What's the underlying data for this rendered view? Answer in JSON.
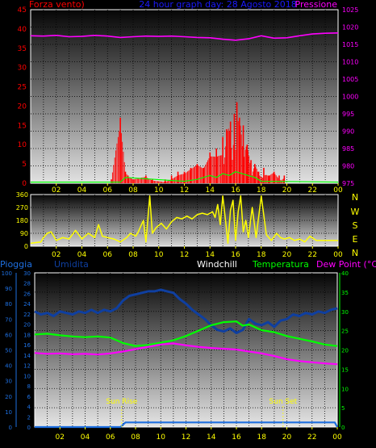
{
  "header": {
    "left_label": "Forza vento",
    "left_label_paren": ")",
    "title": "24 hour graph day:  28 Agosto  2018",
    "right_label": "Pressione"
  },
  "direction_labels": [
    "N",
    "W",
    "S",
    "E",
    "N"
  ],
  "legend": {
    "pioggia": "Pioggia",
    "umidita": "Umidita",
    "windchill": "Windchill",
    "temperatura": "Temperatura",
    "dewpoint": "Dew Point (°C)"
  },
  "annotations": {
    "sunrise": "Sun Rise",
    "sunset": "Sun Set"
  },
  "colors": {
    "wind": "#ff0000",
    "gust_avg": "#00ff00",
    "pressure": "#ff00ff",
    "direction": "#ffff00",
    "rain": "#1e6fe0",
    "humidity": "#0f3fa0",
    "temperature": "#00ff00",
    "dewpoint": "#ff00ff",
    "ticks": "#ffff00",
    "title": "#1a1aff"
  },
  "chart_data": [
    {
      "type": "area",
      "x_tick_labels": [
        "02",
        "04",
        "06",
        "08",
        "10",
        "12",
        "14",
        "16",
        "18",
        "20",
        "22",
        "00"
      ],
      "x_range": [
        0,
        24
      ],
      "ylabel_left": "Forza vento)",
      "ylabel_right": "Pressione",
      "ylim_left": [
        0,
        45
      ],
      "y_ticks_left": [
        "0",
        "5",
        "10",
        "15",
        "20",
        "25",
        "30",
        "35",
        "40",
        "45"
      ],
      "ylim_right": [
        975,
        1025
      ],
      "y_ticks_right": [
        "975",
        "980",
        "985",
        "990",
        "995",
        "1000",
        "1005",
        "1010",
        "1015",
        "1020",
        "1025"
      ],
      "series": [
        {
          "name": "Pressione",
          "axis": "right",
          "x": [
            0,
            1,
            2,
            3,
            4,
            5,
            6,
            7,
            8,
            9,
            10,
            11,
            12,
            13,
            14,
            15,
            16,
            17,
            18,
            19,
            20,
            21,
            22,
            23,
            24
          ],
          "values": [
            1017.5,
            1017.4,
            1017.6,
            1017.2,
            1017.3,
            1017.6,
            1017.4,
            1017.0,
            1017.2,
            1017.4,
            1017.3,
            1017.4,
            1017.2,
            1017.0,
            1016.9,
            1016.5,
            1016.2,
            1016.6,
            1017.5,
            1016.8,
            1016.9,
            1017.5,
            1018.0,
            1018.2,
            1018.3
          ]
        },
        {
          "name": "wind_speed",
          "axis": "left",
          "x": [
            6.3,
            7.0,
            7.4,
            7.6,
            8.0,
            9.0,
            9.5,
            10.5,
            11.0,
            11.5,
            12.0,
            12.5,
            13.0,
            13.5,
            14.0,
            14.5,
            15.0,
            15.3,
            15.6,
            15.9,
            16.1,
            16.3,
            16.6,
            16.9,
            17.2,
            17.5,
            17.8,
            18.2,
            18.6,
            19.0,
            19.4,
            19.8
          ],
          "values": [
            1,
            17,
            3,
            2,
            1,
            2,
            1,
            1,
            2,
            3,
            3,
            4,
            5,
            4,
            8,
            9,
            12,
            14,
            16,
            18,
            21,
            17,
            15,
            10,
            6,
            5,
            3,
            4,
            2,
            3,
            2,
            2
          ]
        },
        {
          "name": "wind_average",
          "axis": "left",
          "x": [
            0,
            7.0,
            7.4,
            12.0,
            13.0,
            14.0,
            14.5,
            15.0,
            15.5,
            16.0,
            16.5,
            17.0,
            17.5,
            18.0,
            24
          ],
          "values": [
            0.3,
            0.3,
            1.5,
            0.5,
            1,
            2,
            1.5,
            2.5,
            2,
            3,
            2.5,
            2,
            1.5,
            0.5,
            0.3
          ]
        }
      ]
    },
    {
      "type": "line",
      "name": "wind_direction",
      "x_tick_labels": [
        "02",
        "04",
        "06",
        "08",
        "10",
        "12",
        "14",
        "16",
        "18",
        "20",
        "22",
        "00"
      ],
      "x_range": [
        0,
        24
      ],
      "ylim": [
        0,
        360
      ],
      "y_ticks": [
        "0",
        "90",
        "180",
        "270",
        "360"
      ],
      "right_labels": [
        "N",
        "W",
        "S",
        "E",
        "N"
      ],
      "x": [
        0,
        0.8,
        1,
        1.3,
        1.6,
        2.0,
        2.5,
        3,
        3.5,
        4,
        4.5,
        5,
        5.3,
        5.6,
        6,
        6.5,
        7,
        7.5,
        7.8,
        8.2,
        8.4,
        8.8,
        9,
        9.3,
        9.5,
        9.8,
        10.2,
        10.6,
        11,
        11.4,
        11.8,
        12.2,
        12.6,
        13,
        13.4,
        13.8,
        14.2,
        14.4,
        14.6,
        14.8,
        15,
        15.2,
        15.4,
        15.6,
        15.8,
        16,
        16.2,
        16.4,
        16.6,
        16.8,
        17,
        17.3,
        17.6,
        18,
        18.4,
        18.8,
        19.2,
        19.5,
        19.8,
        20.2,
        20.6,
        21,
        21.4,
        21.8,
        22.3,
        22.8,
        23.3,
        24
      ],
      "values": [
        20,
        30,
        60,
        90,
        100,
        40,
        60,
        50,
        110,
        50,
        90,
        60,
        150,
        70,
        60,
        50,
        30,
        60,
        90,
        70,
        100,
        180,
        30,
        350,
        90,
        130,
        160,
        120,
        170,
        200,
        190,
        210,
        190,
        220,
        230,
        220,
        240,
        200,
        290,
        150,
        350,
        190,
        20,
        250,
        320,
        40,
        240,
        350,
        100,
        180,
        60,
        270,
        60,
        350,
        80,
        40,
        90,
        60,
        50,
        60,
        40,
        50,
        30,
        70,
        40,
        40,
        40,
        40
      ]
    },
    {
      "type": "line",
      "x_tick_labels": [
        "02",
        "04",
        "06",
        "08",
        "10",
        "12",
        "14",
        "16",
        "18",
        "20",
        "22",
        "00"
      ],
      "x_range": [
        0,
        24
      ],
      "ylim_rain": [
        0,
        100
      ],
      "y_ticks_rain": [
        "0",
        "10",
        "20",
        "30",
        "40",
        "50",
        "60",
        "70",
        "80",
        "90",
        "100"
      ],
      "ylim_humidity": [
        0,
        30
      ],
      "y_ticks_humidity": [
        "0",
        "2",
        "4",
        "6",
        "8",
        "10",
        "12",
        "14",
        "16",
        "18",
        "20",
        "22",
        "24",
        "26",
        "28",
        "30"
      ],
      "ylim_temp": [
        0,
        40
      ],
      "y_ticks_temp": [
        "0",
        "5",
        "10",
        "15",
        "20",
        "25",
        "30",
        "35",
        "40"
      ],
      "series": [
        {
          "name": "Umidita",
          "axis": "rain",
          "x": [
            0,
            0.5,
            1,
            1.5,
            2,
            2.5,
            3,
            3.5,
            4,
            4.5,
            5,
            5.5,
            6,
            6.5,
            7,
            7.5,
            8,
            8.5,
            9,
            9.5,
            10,
            10.5,
            11,
            11.5,
            12,
            12.5,
            13,
            13.5,
            14,
            14.5,
            15,
            15.5,
            16,
            16.5,
            17,
            17.5,
            18,
            18.5,
            19,
            19.5,
            20,
            20.5,
            21,
            21.5,
            22,
            22.5,
            23,
            23.5,
            24
          ],
          "values": [
            75,
            73,
            74,
            72,
            75,
            74,
            73,
            75,
            74,
            76,
            74,
            76,
            75,
            77,
            82,
            85,
            86,
            87,
            88,
            88,
            89,
            88,
            87,
            83,
            80,
            76,
            73,
            70,
            66,
            63,
            62,
            64,
            61,
            63,
            70,
            67,
            66,
            68,
            65,
            69,
            70,
            73,
            72,
            74,
            73,
            75,
            74,
            76,
            77
          ]
        },
        {
          "name": "Temperatura",
          "axis": "temp",
          "x": [
            0,
            1,
            2,
            3,
            4,
            5,
            6,
            7,
            8,
            9,
            10,
            11,
            12,
            13,
            14,
            15,
            16,
            16.5,
            17,
            18,
            19,
            20,
            21,
            22,
            23,
            24
          ],
          "values": [
            24.0,
            24.2,
            23.8,
            23.5,
            23.3,
            23.5,
            23.2,
            21.8,
            21.0,
            21.3,
            21.9,
            22.5,
            23.6,
            25.0,
            26.4,
            27.2,
            27.4,
            26.3,
            26.6,
            25.1,
            24.6,
            23.6,
            22.9,
            22.2,
            21.4,
            21.0
          ]
        },
        {
          "name": "Dew Point (°C)",
          "axis": "temp",
          "x": [
            0,
            1,
            2,
            3,
            4,
            5,
            6,
            7,
            8,
            9,
            10,
            11,
            12,
            13,
            14,
            15,
            16,
            17,
            18,
            19,
            20,
            21,
            22,
            23,
            24
          ],
          "values": [
            19.2,
            19.0,
            19.1,
            18.9,
            19.0,
            18.8,
            19.1,
            19.6,
            20.2,
            20.8,
            21.4,
            21.7,
            21.2,
            20.8,
            20.5,
            20.3,
            20.1,
            19.6,
            19.1,
            18.4,
            17.6,
            17.1,
            16.8,
            16.5,
            16.3
          ]
        },
        {
          "name": "Pioggia",
          "axis": "humidity",
          "x": [
            0,
            6.8,
            7.2,
            23.8,
            24
          ],
          "values": [
            0,
            0,
            3,
            3,
            0
          ]
        }
      ],
      "sunrise_x": 6.9,
      "sunset_x": 19.7
    }
  ]
}
